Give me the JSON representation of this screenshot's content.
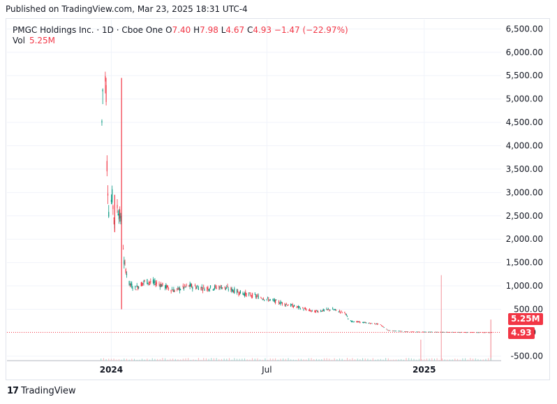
{
  "header": {
    "published": "Published on TradingView.com, Mar 23, 2025 18:31 UTC-4"
  },
  "legend": {
    "symbol": "PMGC Holdings Inc. · 1D · Cboe One",
    "o_label": "O",
    "o_value": "7.40",
    "h_label": "H",
    "h_value": "7.98",
    "l_label": "L",
    "l_value": "4.67",
    "c_label": "C",
    "c_value": "4.93",
    "change": "−1.47 (−22.97%)",
    "vol_label": "Vol",
    "vol_value": "5.25M"
  },
  "badges": {
    "volume": "5.25M",
    "price": "4.93"
  },
  "footer": {
    "brand": "TradingView"
  },
  "colors": {
    "up": "#089981",
    "down": "#f23645",
    "grid": "#f0f3fa",
    "axis_text": "#131722"
  },
  "chart_data": {
    "type": "candlestick",
    "title": "PMGC Holdings Inc. · 1D · Cboe One",
    "ylim": [
      -600,
      6700
    ],
    "y_ticks": [
      -500,
      500,
      1000,
      1500,
      2000,
      2500,
      3000,
      3500,
      4000,
      4500,
      5000,
      5500,
      6000,
      6500
    ],
    "y_tick_labels": [
      "-500.00",
      "500.00",
      "1,000.00",
      "1,500.00",
      "2,000.00",
      "2,500.00",
      "3,000.00",
      "3,500.00",
      "4,000.00",
      "4,500.00",
      "5,000.00",
      "5,500.00",
      "6,000.00",
      "6,500.00"
    ],
    "x_ticks": [
      {
        "date": "2024-01-01",
        "label": "2024",
        "bold": true
      },
      {
        "date": "2024-07-01",
        "label": "Jul",
        "bold": false
      },
      {
        "date": "2025-01-01",
        "label": "2025",
        "bold": true
      }
    ],
    "x_range": [
      "2023-09-01",
      "2025-04-01"
    ],
    "price_path": [
      [
        "2023-12-21",
        4500
      ],
      [
        "2023-12-23",
        5900
      ],
      [
        "2023-12-26",
        5200
      ],
      [
        "2023-12-27",
        3600
      ],
      [
        "2023-12-29",
        2600
      ],
      [
        "2024-01-02",
        2900
      ],
      [
        "2024-01-05",
        2300
      ],
      [
        "2024-01-08",
        2700
      ],
      [
        "2024-01-11",
        2500
      ],
      [
        "2024-01-14",
        2200
      ],
      [
        "2024-01-16",
        1500
      ],
      [
        "2024-01-22",
        1050
      ],
      [
        "2024-01-29",
        950
      ],
      [
        "2024-02-10",
        1100
      ],
      [
        "2024-02-25",
        1050
      ],
      [
        "2024-03-15",
        900
      ],
      [
        "2024-04-01",
        1000
      ],
      [
        "2024-04-20",
        950
      ],
      [
        "2024-05-10",
        980
      ],
      [
        "2024-06-01",
        850
      ],
      [
        "2024-06-25",
        750
      ],
      [
        "2024-07-15",
        650
      ],
      [
        "2024-08-05",
        550
      ],
      [
        "2024-08-25",
        450
      ],
      [
        "2024-09-15",
        500
      ],
      [
        "2024-10-01",
        420
      ],
      [
        "2024-10-05",
        250
      ],
      [
        "2024-10-30",
        200
      ],
      [
        "2024-11-10",
        180
      ],
      [
        "2024-11-20",
        50
      ],
      [
        "2024-12-15",
        20
      ],
      [
        "2025-01-15",
        15
      ],
      [
        "2025-02-15",
        10
      ],
      [
        "2025-03-21",
        5
      ]
    ],
    "spikes": [
      {
        "date": "2024-01-13",
        "high": 5450,
        "low": 500
      },
      {
        "date": "2024-01-05",
        "high": 2950,
        "low": 2150
      }
    ],
    "volume_spikes": [
      {
        "date": "2025-01-21",
        "value": 1200
      },
      {
        "date": "2025-01-01",
        "value": 0
      },
      {
        "date": "2025-03-20",
        "value": 5250
      }
    ],
    "last_close": 4.93,
    "last_volume": "5.25M"
  }
}
